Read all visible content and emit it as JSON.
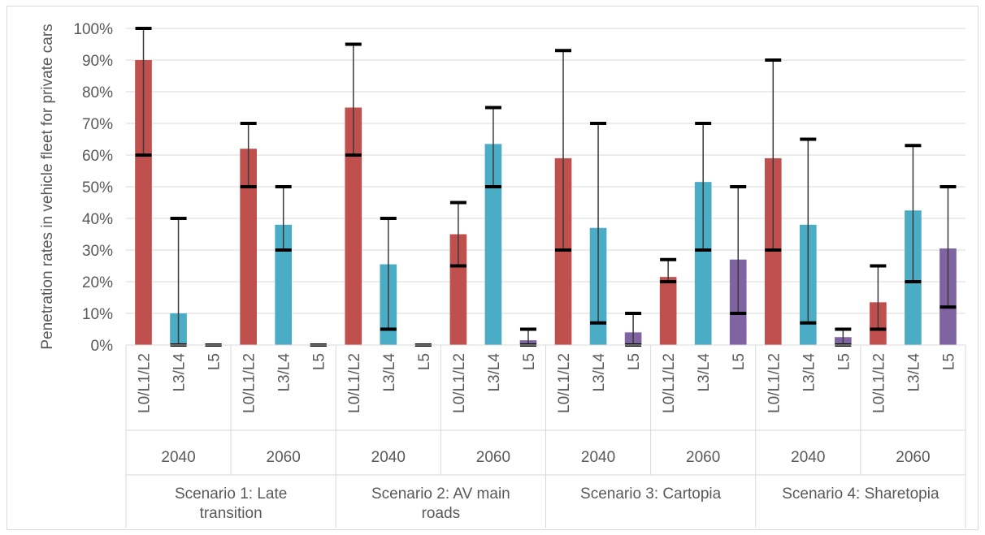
{
  "chart_data": {
    "type": "bar",
    "ylabel": "Penetration rates in vehicle fleet for private cars",
    "ylim": [
      0,
      100
    ],
    "y_ticks": [
      "0%",
      "10%",
      "20%",
      "30%",
      "40%",
      "50%",
      "60%",
      "70%",
      "80%",
      "90%",
      "100%"
    ],
    "grid": true,
    "colors": {
      "L0/L1/L2": "#c0504d",
      "L3/L4": "#4bacc6",
      "L5": "#8064a2"
    },
    "scenarios": [
      {
        "name": "Scenario 1: Late transition",
        "name_lines": [
          "Scenario 1: Late",
          "transition"
        ],
        "years": [
          {
            "year": "2040",
            "bars": [
              {
                "category": "L0/L1/L2",
                "value": 90,
                "err_low": 60,
                "err_high": 100
              },
              {
                "category": "L3/L4",
                "value": 10,
                "err_low": 0,
                "err_high": 40
              },
              {
                "category": "L5",
                "value": 0,
                "err_low": 0,
                "err_high": 0
              }
            ]
          },
          {
            "year": "2060",
            "bars": [
              {
                "category": "L0/L1/L2",
                "value": 62,
                "err_low": 50,
                "err_high": 70
              },
              {
                "category": "L3/L4",
                "value": 38,
                "err_low": 30,
                "err_high": 50
              },
              {
                "category": "L5",
                "value": 0,
                "err_low": 0,
                "err_high": 0
              }
            ]
          }
        ]
      },
      {
        "name": "Scenario 2: AV main roads",
        "name_lines": [
          "Scenario 2: AV main",
          "roads"
        ],
        "years": [
          {
            "year": "2040",
            "bars": [
              {
                "category": "L0/L1/L2",
                "value": 75,
                "err_low": 60,
                "err_high": 95
              },
              {
                "category": "L3/L4",
                "value": 25.5,
                "err_low": 5,
                "err_high": 40
              },
              {
                "category": "L5",
                "value": 0,
                "err_low": 0,
                "err_high": 0
              }
            ]
          },
          {
            "year": "2060",
            "bars": [
              {
                "category": "L0/L1/L2",
                "value": 35,
                "err_low": 25,
                "err_high": 45
              },
              {
                "category": "L3/L4",
                "value": 63.5,
                "err_low": 50,
                "err_high": 75
              },
              {
                "category": "L5",
                "value": 1.5,
                "err_low": 0,
                "err_high": 5
              }
            ]
          }
        ]
      },
      {
        "name": "Scenario 3: Cartopia",
        "name_lines": [
          "Scenario 3: Cartopia"
        ],
        "years": [
          {
            "year": "2040",
            "bars": [
              {
                "category": "L0/L1/L2",
                "value": 59,
                "err_low": 30,
                "err_high": 93
              },
              {
                "category": "L3/L4",
                "value": 37,
                "err_low": 7,
                "err_high": 70
              },
              {
                "category": "L5",
                "value": 4,
                "err_low": 0,
                "err_high": 10
              }
            ]
          },
          {
            "year": "2060",
            "bars": [
              {
                "category": "L0/L1/L2",
                "value": 21.5,
                "err_low": 20,
                "err_high": 27
              },
              {
                "category": "L3/L4",
                "value": 51.5,
                "err_low": 30,
                "err_high": 70
              },
              {
                "category": "L5",
                "value": 27,
                "err_low": 10,
                "err_high": 50
              }
            ]
          }
        ]
      },
      {
        "name": "Scenario 4: Sharetopia",
        "name_lines": [
          "Scenario 4: Sharetopia"
        ],
        "years": [
          {
            "year": "2040",
            "bars": [
              {
                "category": "L0/L1/L2",
                "value": 59,
                "err_low": 30,
                "err_high": 90
              },
              {
                "category": "L3/L4",
                "value": 38,
                "err_low": 7,
                "err_high": 65
              },
              {
                "category": "L5",
                "value": 2.5,
                "err_low": 0,
                "err_high": 5
              }
            ]
          },
          {
            "year": "2060",
            "bars": [
              {
                "category": "L0/L1/L2",
                "value": 13.5,
                "err_low": 5,
                "err_high": 25
              },
              {
                "category": "L3/L4",
                "value": 42.5,
                "err_low": 20,
                "err_high": 63
              },
              {
                "category": "L5",
                "value": 30.5,
                "err_low": 12,
                "err_high": 50
              }
            ]
          }
        ]
      }
    ]
  }
}
